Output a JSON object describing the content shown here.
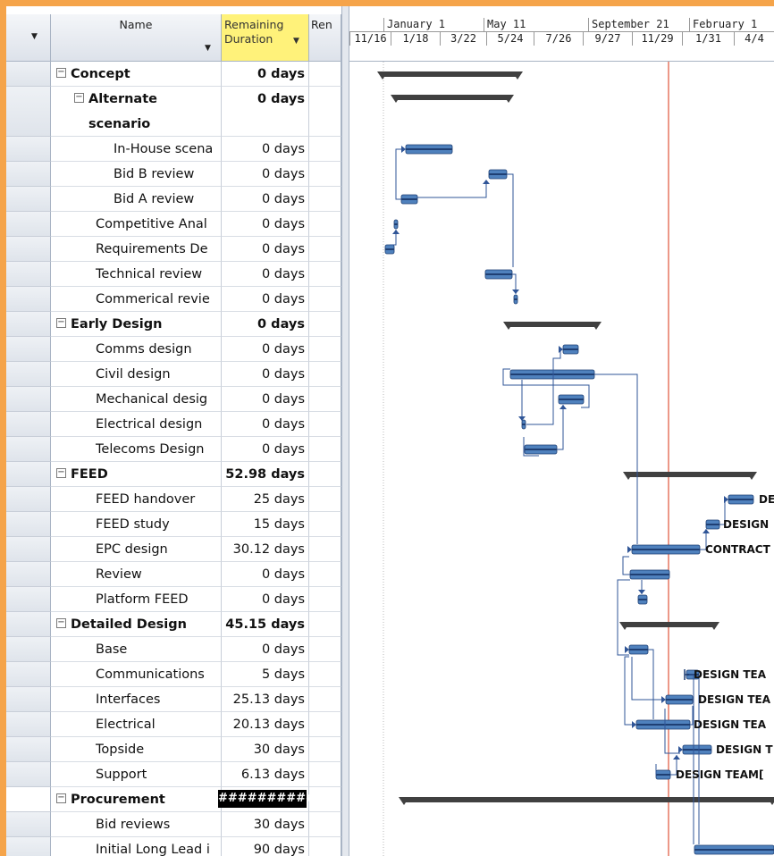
{
  "header": {
    "select_arrow": "▼",
    "name": "Name",
    "name_arrow": "▼",
    "remaining_line1": "Remaining",
    "remaining_line2": "Duration",
    "remaining_arrow": "▼",
    "ren": "Ren"
  },
  "timescale": {
    "major": [
      "January 1",
      "May 11",
      "September 21",
      "February 1"
    ],
    "minor": [
      "11/16",
      "1/18",
      "3/22",
      "5/24",
      "7/26",
      "9/27",
      "11/29",
      "1/31",
      "4/4"
    ]
  },
  "rows": [
    {
      "name": "Concept",
      "remaining": "0 days",
      "summary": true,
      "level": 0,
      "toggle": "−"
    },
    {
      "name": "Alternate",
      "name2": "scenario",
      "remaining": "0 days",
      "summary": true,
      "level": 1,
      "toggle": "−"
    },
    {
      "name": "In-House scena",
      "remaining": "0 days",
      "level": 2
    },
    {
      "name": "Bid B review",
      "remaining": "0 days",
      "level": 2
    },
    {
      "name": "Bid A review",
      "remaining": "0 days",
      "level": 2
    },
    {
      "name": "Competitive Anal",
      "remaining": "0 days",
      "level": 1
    },
    {
      "name": "Requirements De",
      "remaining": "0 days",
      "level": 1
    },
    {
      "name": "Technical review",
      "remaining": "0 days",
      "level": 1
    },
    {
      "name": "Commerical revie",
      "remaining": "0 days",
      "level": 1
    },
    {
      "name": "Early Design",
      "remaining": "0 days",
      "summary": true,
      "level": 0,
      "toggle": "−"
    },
    {
      "name": "Comms design",
      "remaining": "0 days",
      "level": 1
    },
    {
      "name": "Civil design",
      "remaining": "0 days",
      "level": 1
    },
    {
      "name": "Mechanical desig",
      "remaining": "0 days",
      "level": 1
    },
    {
      "name": "Electrical design",
      "remaining": "0 days",
      "level": 1
    },
    {
      "name": "Telecoms Design",
      "remaining": "0 days",
      "level": 1
    },
    {
      "name": "FEED",
      "remaining": "52.98 days",
      "summary": true,
      "level": 0,
      "toggle": "−"
    },
    {
      "name": "FEED handover",
      "remaining": "25 days",
      "level": 1
    },
    {
      "name": "FEED study",
      "remaining": "15 days",
      "level": 1
    },
    {
      "name": "EPC design",
      "remaining": "30.12 days",
      "level": 1
    },
    {
      "name": "Review",
      "remaining": "0 days",
      "level": 1
    },
    {
      "name": "Platform FEED",
      "remaining": "0 days",
      "level": 1
    },
    {
      "name": "Detailed Design",
      "remaining": "45.15 days",
      "summary": true,
      "level": 0,
      "toggle": "−"
    },
    {
      "name": "Base",
      "remaining": "0 days",
      "level": 1
    },
    {
      "name": "Communications",
      "remaining": "5 days",
      "level": 1
    },
    {
      "name": "Interfaces",
      "remaining": "25.13 days",
      "level": 1
    },
    {
      "name": "Electrical",
      "remaining": "20.13 days",
      "level": 1
    },
    {
      "name": "Topside",
      "remaining": "30 days",
      "level": 1
    },
    {
      "name": "Support",
      "remaining": "6.13 days",
      "level": 1
    },
    {
      "name": "Procurement",
      "remaining": "##########",
      "summary": true,
      "level": 0,
      "toggle": "−",
      "overflow": true
    },
    {
      "name": "Bid reviews",
      "remaining": "30 days",
      "level": 1
    },
    {
      "name": "Initial Long Lead i",
      "remaining": "90 days",
      "level": 1
    }
  ],
  "bar_labels": {
    "feed_handover": "DE",
    "feed_study": "DESIGN",
    "epc_design": "CONTRACT",
    "communications": "DESIGN TEA",
    "interfaces": "DESIGN TEA",
    "electrical": "DESIGN TEA",
    "topside": "DESIGN T",
    "support": "DESIGN TEAM["
  },
  "colors": {
    "frame": "#f5a44a",
    "remaining_header": "#fff27a",
    "task_bar": "#4f81bd",
    "summary_bar": "#404040",
    "status_line": "#e0553a",
    "link": "#2f5597"
  }
}
